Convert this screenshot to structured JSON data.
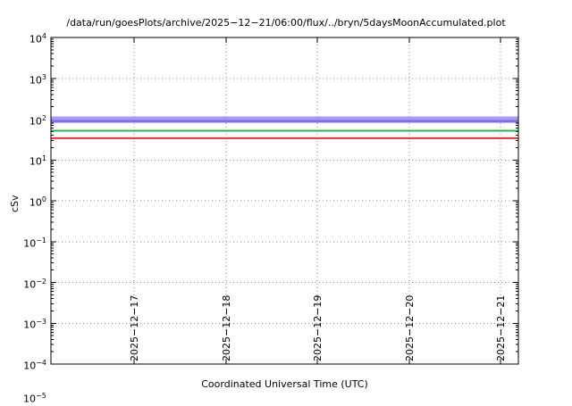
{
  "partial_label": {
    "base": "10",
    "exp": "−5"
  },
  "chart_data": {
    "type": "line",
    "title": "/data/run/goesPlots/archive/2025−12−21/06:00/flux/../bryn/5daysMoonAccumulated.plot",
    "xlabel": "Coordinated Universal Time (UTC)",
    "ylabel": "cSv",
    "y_scale": "log10",
    "ylim": [
      0.0001,
      10000
    ],
    "grid": "dotted major grid on",
    "legend": "none",
    "description": "Four constant horizontal accumulated-dose lines over a 5-day UTC span",
    "x_ticks": [
      {
        "label": "2025−12−17",
        "pos": 0.178
      },
      {
        "label": "2025−12−18",
        "pos": 0.375
      },
      {
        "label": "2025−12−19",
        "pos": 0.57
      },
      {
        "label": "2025−12−20",
        "pos": 0.767
      },
      {
        "label": "2025−12−21",
        "pos": 0.962
      }
    ],
    "series": [
      {
        "name": "violet-line",
        "value": 105,
        "color": "#a89bf0",
        "width": 4
      },
      {
        "name": "blue-line",
        "value": 88,
        "color": "#7a6fe8",
        "width": 3
      },
      {
        "name": "green-line",
        "value": 52,
        "color": "#2db34d",
        "width": 2
      },
      {
        "name": "red-line",
        "value": 34,
        "color": "#e53131",
        "width": 2
      }
    ]
  }
}
